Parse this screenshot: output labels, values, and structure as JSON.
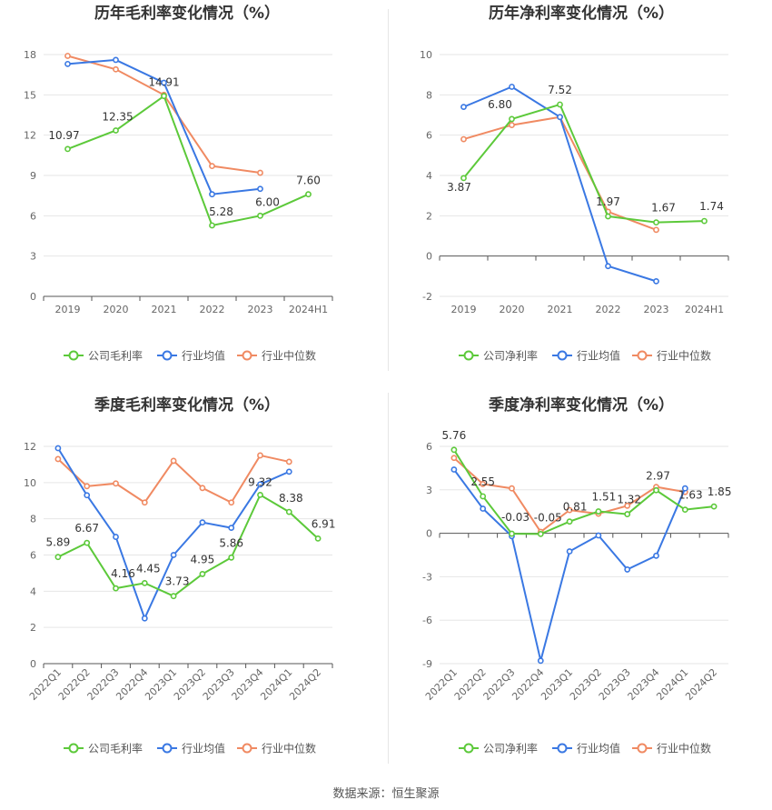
{
  "footer": "数据来源：恒生聚源",
  "colors": {
    "company": "#5cc93a",
    "industry_avg": "#3a78e3",
    "industry_median": "#f08a62"
  },
  "chart_data": [
    {
      "type": "line",
      "title": "历年毛利率变化情况（%）",
      "categories": [
        "2019",
        "2020",
        "2021",
        "2022",
        "2023",
        "2024H1"
      ],
      "ylim": [
        0,
        18
      ],
      "yticks": [
        0,
        3,
        6,
        9,
        12,
        15,
        18
      ],
      "grid": true,
      "legend": "bottom",
      "series": [
        {
          "name": "公司毛利率",
          "key": "company",
          "values": [
            10.97,
            12.35,
            14.91,
            5.28,
            6.0,
            7.6
          ],
          "labels": [
            "10.97",
            "12.35",
            "14.91",
            "5.28",
            "6.00",
            "7.60"
          ]
        },
        {
          "name": "行业均值",
          "key": "industry_avg",
          "values": [
            17.3,
            17.6,
            15.9,
            7.6,
            8.0,
            null
          ]
        },
        {
          "name": "行业中位数",
          "key": "industry_median",
          "values": [
            17.9,
            16.9,
            15.0,
            9.7,
            9.2,
            null
          ]
        }
      ]
    },
    {
      "type": "line",
      "title": "历年净利率变化情况（%）",
      "categories": [
        "2019",
        "2020",
        "2021",
        "2022",
        "2023",
        "2024H1"
      ],
      "ylim": [
        -2,
        10
      ],
      "yticks": [
        -2,
        0,
        2,
        4,
        6,
        8,
        10
      ],
      "grid": true,
      "legend": "bottom",
      "series": [
        {
          "name": "公司净利率",
          "key": "company",
          "values": [
            3.87,
            6.8,
            7.52,
            1.97,
            1.67,
            1.74
          ],
          "labels": [
            "3.87",
            "6.80",
            "7.52",
            "1.97",
            "1.67",
            "1.74"
          ]
        },
        {
          "name": "行业均值",
          "key": "industry_avg",
          "values": [
            7.4,
            8.4,
            6.9,
            -0.5,
            -1.25,
            null
          ]
        },
        {
          "name": "行业中位数",
          "key": "industry_median",
          "values": [
            5.8,
            6.5,
            6.9,
            2.2,
            1.3,
            null
          ]
        }
      ]
    },
    {
      "type": "line",
      "title": "季度毛利率变化情况（%）",
      "categories": [
        "2022Q1",
        "2022Q2",
        "2022Q3",
        "2022Q4",
        "2023Q1",
        "2023Q2",
        "2023Q3",
        "2023Q4",
        "2024Q1",
        "2024Q2"
      ],
      "ylim": [
        0,
        12
      ],
      "yticks": [
        0,
        2,
        4,
        6,
        8,
        10,
        12
      ],
      "grid": true,
      "legend": "bottom",
      "series": [
        {
          "name": "公司毛利率",
          "key": "company",
          "values": [
            5.89,
            6.67,
            4.16,
            4.45,
            3.73,
            4.95,
            5.86,
            9.32,
            8.38,
            6.91
          ],
          "labels": [
            "5.89",
            "6.67",
            "4.16",
            "4.45",
            "3.73",
            "4.95",
            "5.86",
            "9.32",
            "8.38",
            "6.91"
          ]
        },
        {
          "name": "行业均值",
          "key": "industry_avg",
          "values": [
            11.9,
            9.3,
            7.0,
            2.5,
            6.0,
            7.8,
            7.5,
            9.9,
            10.6,
            null
          ]
        },
        {
          "name": "行业中位数",
          "key": "industry_median",
          "values": [
            11.3,
            9.8,
            9.95,
            8.9,
            11.2,
            9.7,
            8.9,
            11.5,
            11.15,
            null
          ]
        }
      ]
    },
    {
      "type": "line",
      "title": "季度净利率变化情况（%）",
      "categories": [
        "2022Q1",
        "2022Q2",
        "2022Q3",
        "2022Q4",
        "2023Q1",
        "2023Q2",
        "2023Q3",
        "2023Q4",
        "2024Q1",
        "2024Q2"
      ],
      "ylim": [
        -9,
        6
      ],
      "yticks": [
        -9,
        -6,
        -3,
        0,
        3,
        6
      ],
      "grid": true,
      "legend": "bottom",
      "series": [
        {
          "name": "公司净利率",
          "key": "company",
          "values": [
            5.76,
            2.55,
            -0.03,
            -0.05,
            0.81,
            1.51,
            1.32,
            2.97,
            1.63,
            1.85
          ],
          "labels": [
            "5.76",
            "2.55",
            "-0.03",
            "-0.05",
            "0.81",
            "1.51",
            "1.32",
            "2.97",
            "1.63",
            "1.85"
          ]
        },
        {
          "name": "行业均值",
          "key": "industry_avg",
          "values": [
            4.4,
            1.7,
            -0.2,
            -8.8,
            -1.25,
            -0.15,
            -2.5,
            -1.55,
            3.1,
            null
          ]
        },
        {
          "name": "行业中位数",
          "key": "industry_median",
          "values": [
            5.2,
            3.4,
            3.1,
            0.1,
            1.6,
            1.35,
            1.9,
            3.2,
            2.85,
            null
          ]
        }
      ]
    }
  ]
}
